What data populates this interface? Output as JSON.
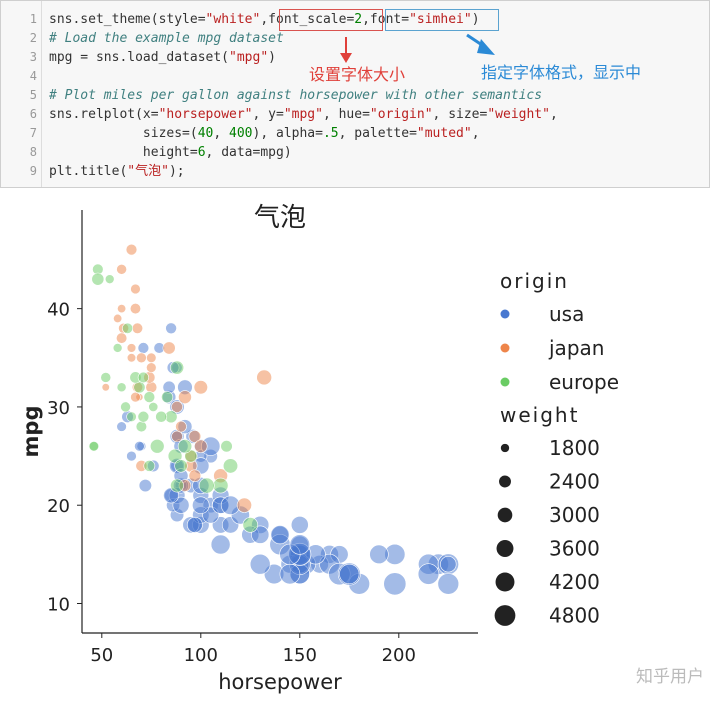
{
  "code": {
    "line_numbers": [
      "1",
      "2",
      "3",
      "4",
      "5",
      "6",
      "7",
      "8",
      "9"
    ],
    "lines": [
      [
        {
          "t": "sns.set_theme(style=",
          "c": "k"
        },
        {
          "t": "\"white\"",
          "c": "s"
        },
        {
          "t": ",",
          "c": "k"
        },
        {
          "t": "font_scale=",
          "c": "k"
        },
        {
          "t": "2",
          "c": "n"
        },
        {
          "t": ",",
          "c": "k"
        },
        {
          "t": "font=",
          "c": "k"
        },
        {
          "t": "\"simhei\"",
          "c": "s"
        },
        {
          "t": ")",
          "c": "k"
        }
      ],
      [
        {
          "t": "# Load the example mpg dataset",
          "c": "c"
        }
      ],
      [
        {
          "t": "mpg = sns.load_dataset(",
          "c": "k"
        },
        {
          "t": "\"mpg\"",
          "c": "s"
        },
        {
          "t": ")",
          "c": "k"
        }
      ],
      [
        {
          "t": "",
          "c": "k"
        }
      ],
      [
        {
          "t": "# Plot miles per gallon against horsepower with other semantics",
          "c": "c"
        }
      ],
      [
        {
          "t": "sns.relplot(x=",
          "c": "k"
        },
        {
          "t": "\"horsepower\"",
          "c": "s"
        },
        {
          "t": ", y=",
          "c": "k"
        },
        {
          "t": "\"mpg\"",
          "c": "s"
        },
        {
          "t": ", hue=",
          "c": "k"
        },
        {
          "t": "\"origin\"",
          "c": "s"
        },
        {
          "t": ", size=",
          "c": "k"
        },
        {
          "t": "\"weight\"",
          "c": "s"
        },
        {
          "t": ",",
          "c": "k"
        }
      ],
      [
        {
          "t": "            sizes=(",
          "c": "k"
        },
        {
          "t": "40",
          "c": "n"
        },
        {
          "t": ", ",
          "c": "k"
        },
        {
          "t": "400",
          "c": "n"
        },
        {
          "t": "), alpha=",
          "c": "k"
        },
        {
          "t": ".5",
          "c": "n"
        },
        {
          "t": ", palette=",
          "c": "k"
        },
        {
          "t": "\"muted\"",
          "c": "s"
        },
        {
          "t": ",",
          "c": "k"
        }
      ],
      [
        {
          "t": "            height=",
          "c": "k"
        },
        {
          "t": "6",
          "c": "n"
        },
        {
          "t": ", data=mpg)",
          "c": "k"
        }
      ],
      [
        {
          "t": "plt.title(",
          "c": "k"
        },
        {
          "t": "\"气泡\"",
          "c": "s"
        },
        {
          "t": ");",
          "c": "k"
        }
      ]
    ]
  },
  "annotations": {
    "red": "设置字体大小",
    "blue": "指定字体格式，显示中",
    "red_color": "#e0403a",
    "blue_color": "#2b8ad6"
  },
  "chart_data": {
    "type": "scatter",
    "title": "气泡",
    "xlabel": "horsepower",
    "ylabel": "mpg",
    "xlim": [
      40,
      240
    ],
    "ylim": [
      7,
      48
    ],
    "xticks": [
      50,
      100,
      150,
      200
    ],
    "yticks": [
      10,
      20,
      30,
      40
    ],
    "legend": {
      "placement": "right",
      "hue_title": "origin",
      "hue": [
        {
          "name": "usa",
          "color": "#4878d0"
        },
        {
          "name": "japan",
          "color": "#ee854a"
        },
        {
          "name": "europe",
          "color": "#6acc64"
        }
      ],
      "size_title": "weight",
      "sizes": [
        1800,
        2400,
        3000,
        3600,
        4200,
        4800
      ]
    },
    "series": [
      {
        "name": "usa",
        "points": [
          [
            130,
            18,
            3504
          ],
          [
            165,
            15,
            3693
          ],
          [
            150,
            18,
            3436
          ],
          [
            150,
            16,
            3433
          ],
          [
            140,
            17,
            3449
          ],
          [
            198,
            15,
            4341
          ],
          [
            220,
            14,
            4354
          ],
          [
            215,
            14,
            4312
          ],
          [
            225,
            14,
            4425
          ],
          [
            190,
            15,
            3850
          ],
          [
            170,
            15,
            3563
          ],
          [
            160,
            14,
            3609
          ],
          [
            150,
            15,
            3761
          ],
          [
            225,
            14,
            3086
          ],
          [
            95,
            22,
            2833
          ],
          [
            97,
            18,
            2774
          ],
          [
            85,
            21,
            2587
          ],
          [
            88,
            27,
            2130
          ],
          [
            100,
            26,
            2648
          ],
          [
            105,
            25,
            2634
          ],
          [
            88,
            24,
            2430
          ],
          [
            100,
            25,
            2375
          ],
          [
            165,
            14,
            4209
          ],
          [
            175,
            13,
            4464
          ],
          [
            153,
            14,
            4154
          ],
          [
            150,
            15,
            3892
          ],
          [
            180,
            12,
            4499
          ],
          [
            170,
            13,
            4746
          ],
          [
            175,
            13,
            4951
          ],
          [
            110,
            18,
            3288
          ],
          [
            72,
            22,
            2408
          ],
          [
            100,
            21,
            3139
          ],
          [
            88,
            19,
            2600
          ],
          [
            86,
            20,
            2565
          ],
          [
            90,
            22,
            2219
          ],
          [
            70,
            26,
            1835
          ],
          [
            76,
            24,
            2254
          ],
          [
            65,
            25,
            1950
          ],
          [
            69,
            26,
            1963
          ],
          [
            60,
            28,
            1937
          ],
          [
            150,
            13,
            4135
          ],
          [
            145,
            14,
            3672
          ],
          [
            137,
            13,
            4129
          ],
          [
            150,
            14,
            3664
          ],
          [
            198,
            12,
            4950
          ],
          [
            150,
            13,
            4082
          ],
          [
            158,
            15,
            4055
          ],
          [
            150,
            14,
            4499
          ],
          [
            215,
            13,
            4456
          ],
          [
            225,
            12,
            4498
          ],
          [
            175,
            13,
            4100
          ],
          [
            105,
            20,
            3021
          ],
          [
            100,
            18,
            3329
          ],
          [
            100,
            19,
            3302
          ],
          [
            88,
            21,
            3139
          ],
          [
            95,
            18,
            3232
          ],
          [
            100,
            22,
            3264
          ],
          [
            115,
            18,
            3270
          ],
          [
            90,
            20,
            3211
          ],
          [
            145,
            13,
            4215
          ],
          [
            130,
            14,
            4237
          ],
          [
            150,
            15,
            4735
          ],
          [
            150,
            15,
            4951
          ],
          [
            140,
            16,
            4385
          ],
          [
            110,
            16,
            3955
          ],
          [
            97,
            18,
            2984
          ],
          [
            110,
            20,
            3381
          ],
          [
            90,
            22,
            2979
          ],
          [
            125,
            17,
            3465
          ],
          [
            145,
            15,
            4380
          ],
          [
            105,
            19,
            3205
          ],
          [
            100,
            20,
            3365
          ],
          [
            85,
            21,
            2965
          ],
          [
            88,
            24,
            2945
          ],
          [
            110,
            21,
            3365
          ],
          [
            130,
            17,
            3525
          ],
          [
            140,
            17,
            3760
          ],
          [
            150,
            16,
            4140
          ],
          [
            90,
            23,
            2720
          ],
          [
            88,
            27,
            2720
          ],
          [
            96,
            27,
            2720
          ],
          [
            84,
            31,
            2585
          ],
          [
            90,
            26,
            2745
          ],
          [
            88,
            30,
            2795
          ],
          [
            71,
            36,
            2110
          ],
          [
            88,
            34,
            2045
          ],
          [
            84,
            32,
            2380
          ],
          [
            92,
            28,
            2720
          ],
          [
            63,
            29,
            2255
          ],
          [
            86,
            34,
            2295
          ],
          [
            79,
            36,
            2085
          ],
          [
            110,
            20,
            3265
          ],
          [
            105,
            26,
            3835
          ],
          [
            120,
            19,
            3730
          ],
          [
            85,
            38,
            2125
          ],
          [
            92,
            32,
            2865
          ],
          [
            100,
            24,
            3250
          ],
          [
            115,
            20,
            3830
          ]
        ]
      },
      {
        "name": "japan",
        "points": [
          [
            95,
            24,
            2372
          ],
          [
            88,
            27,
            2130
          ],
          [
            65,
            35,
            1773
          ],
          [
            69,
            31,
            1613
          ],
          [
            95,
            25,
            2228
          ],
          [
            97,
            27,
            2300
          ],
          [
            92,
            22,
            2283
          ],
          [
            97,
            23,
            2288
          ],
          [
            122,
            20,
            2807
          ],
          [
            70,
            24,
            2158
          ],
          [
            67,
            31,
            1950
          ],
          [
            70,
            35,
            1975
          ],
          [
            52,
            32,
            1649
          ],
          [
            61,
            38,
            2003
          ],
          [
            75,
            32,
            2155
          ],
          [
            110,
            23,
            2702
          ],
          [
            90,
            28,
            2125
          ],
          [
            60,
            40,
            1755
          ],
          [
            65,
            46,
            2110
          ],
          [
            60,
            44,
            1985
          ],
          [
            65,
            36,
            1800
          ],
          [
            74,
            33,
            2190
          ],
          [
            132,
            33,
            2910
          ],
          [
            88,
            30,
            2160
          ],
          [
            68,
            38,
            2065
          ],
          [
            75,
            35,
            1925
          ],
          [
            67,
            40,
            2050
          ],
          [
            100,
            32,
            2615
          ],
          [
            60,
            37,
            2065
          ],
          [
            75,
            34,
            1940
          ],
          [
            68,
            32,
            2045
          ],
          [
            100,
            26,
            2440
          ],
          [
            58,
            39,
            1755
          ],
          [
            84,
            36,
            2370
          ],
          [
            92,
            31,
            2500
          ],
          [
            67,
            42,
            1945
          ]
        ]
      },
      {
        "name": "europe",
        "points": [
          [
            46,
            26,
            1835
          ],
          [
            87,
            25,
            2672
          ],
          [
            90,
            24,
            2430
          ],
          [
            95,
            25,
            2375
          ],
          [
            113,
            26,
            2234
          ],
          [
            70,
            28,
            2074
          ],
          [
            46,
            26,
            1950
          ],
          [
            88,
            22,
            2511
          ],
          [
            76,
            30,
            1867
          ],
          [
            54,
            43,
            1825
          ],
          [
            69,
            32,
            2200
          ],
          [
            65,
            29,
            1937
          ],
          [
            71,
            29,
            2130
          ],
          [
            48,
            44,
            2085
          ],
          [
            48,
            43,
            2335
          ],
          [
            67,
            33,
            2190
          ],
          [
            78,
            26,
            2670
          ],
          [
            60,
            32,
            1850
          ],
          [
            74,
            24,
            2150
          ],
          [
            71,
            33,
            2065
          ],
          [
            88,
            34,
            2560
          ],
          [
            115,
            24,
            2795
          ],
          [
            83,
            31,
            2190
          ],
          [
            62,
            30,
            1985
          ],
          [
            58,
            36,
            1825
          ],
          [
            92,
            26,
            2620
          ],
          [
            85,
            29,
            2330
          ],
          [
            52,
            33,
            1985
          ],
          [
            74,
            31,
            2124
          ],
          [
            110,
            22,
            2910
          ],
          [
            103,
            22,
            2945
          ],
          [
            125,
            18,
            2875
          ],
          [
            63,
            38,
            2045
          ],
          [
            80,
            29,
            2160
          ]
        ]
      }
    ]
  },
  "watermark": "知乎用户"
}
